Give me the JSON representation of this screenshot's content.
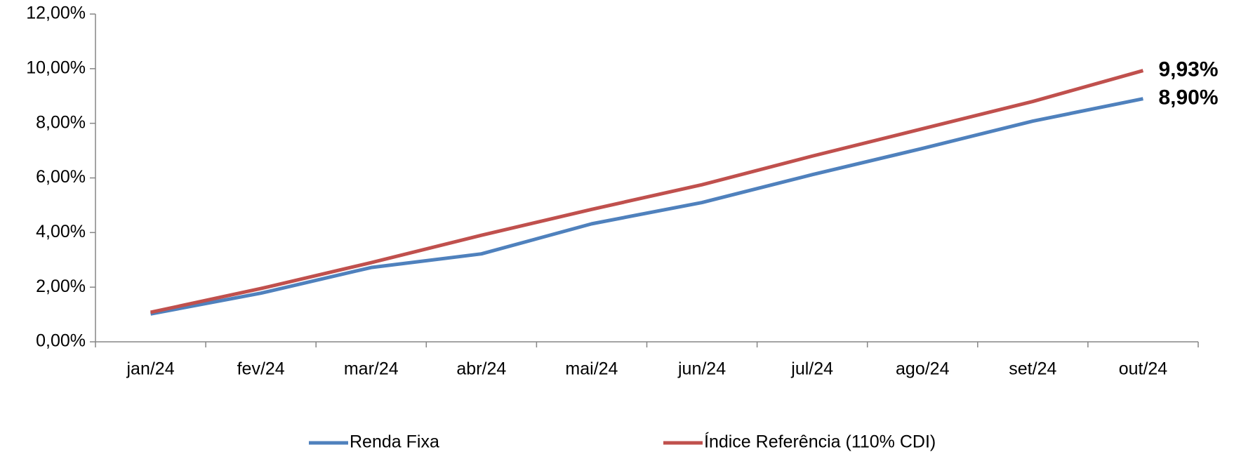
{
  "chart_data": {
    "type": "line",
    "categories": [
      "jan/24",
      "fev/24",
      "mar/24",
      "abr/24",
      "mai/24",
      "jun/24",
      "jul/24",
      "ago/24",
      "set/24",
      "out/24"
    ],
    "series": [
      {
        "name": "Renda Fixa",
        "color": "#4f81bd",
        "label_color": "#1f497d",
        "values": [
          1.02,
          1.78,
          2.72,
          3.22,
          4.32,
          5.1,
          6.12,
          7.08,
          8.08,
          8.9
        ],
        "value_labels": [
          null,
          null,
          null,
          null,
          null,
          null,
          null,
          null,
          null,
          "8,90%"
        ]
      },
      {
        "name": "Índice Referência (110% CDI)",
        "color": "#c0504d",
        "label_color": "#ff0000",
        "values": [
          1.08,
          1.95,
          2.9,
          3.9,
          4.85,
          5.75,
          6.8,
          7.8,
          8.8,
          9.93
        ],
        "value_labels": [
          null,
          null,
          null,
          null,
          null,
          null,
          null,
          null,
          null,
          "9,93%"
        ]
      }
    ],
    "ylim": [
      0,
      12
    ],
    "yticks": [
      {
        "value": 0,
        "label": "0,00%"
      },
      {
        "value": 2,
        "label": "2,00%"
      },
      {
        "value": 4,
        "label": "4,00%"
      },
      {
        "value": 6,
        "label": "6,00%"
      },
      {
        "value": 8,
        "label": "8,00%"
      },
      {
        "value": 10,
        "label": "10,00%"
      },
      {
        "value": 12,
        "label": "12,00%"
      }
    ],
    "grid": false,
    "legend": "bottom"
  }
}
